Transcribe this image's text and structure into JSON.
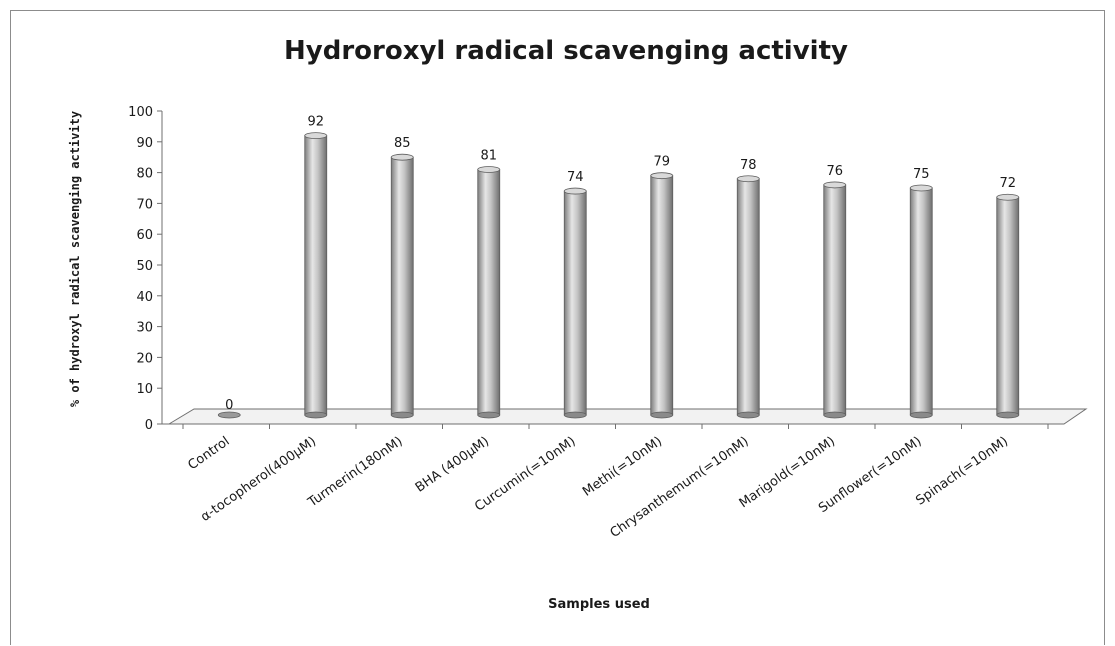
{
  "chart_data": {
    "type": "bar",
    "title": "Hydroroxyl radical scavenging activity",
    "xlabel": "Samples used",
    "ylabel": "% of hydroxyl radical scavenging activity",
    "categories": [
      "Control",
      "α-tocopherol(400μM)",
      "Turmerin(180nM)",
      "BHA (400μM)",
      "Curcumin(=10nM)",
      "Methi(=10nM)",
      "Chrysanthemum(=10nM)",
      "Marigold(=10nM)",
      "Sunflower(=10nM)",
      "Spinach(=10nM)"
    ],
    "values": [
      0,
      92,
      85,
      81,
      74,
      79,
      78,
      76,
      75,
      72
    ],
    "data_labels": [
      "0",
      "92",
      "85",
      "81",
      "74",
      "79",
      "78",
      "76",
      "75",
      "72"
    ],
    "ylim": [
      0,
      100
    ],
    "yticks": [
      "0",
      "10",
      "20",
      "30",
      "40",
      "50",
      "60",
      "70",
      "80",
      "90",
      "100"
    ],
    "bar_style": "3d-cylinder",
    "bar_color": "#b3b3b3",
    "grid": false,
    "legend": "none"
  }
}
